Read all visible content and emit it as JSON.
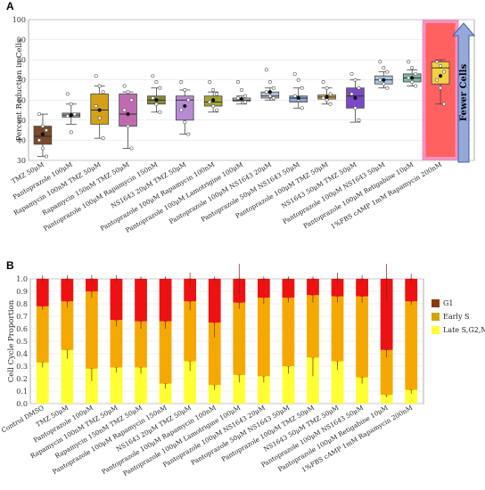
{
  "panel_a_letter": "A",
  "panel_b_letter": "B",
  "chart_data": [
    {
      "type": "box",
      "ylabel": "Percent Reduction in Cells",
      "ylim": [
        30,
        100
      ],
      "yticks": [
        30,
        40,
        50,
        60,
        70,
        80,
        90,
        100
      ],
      "annotation": "Fewer Cells",
      "highlighted_category": "1%FBS cAMP 1mM Rapamycin 200nM",
      "categories": [
        "TMZ 50μM",
        "Pantoprazole 100μM",
        "Rapamycin 100nM TMZ 50μM",
        "Rapamycin 150nM TMZ 50μM",
        "Pantoprazole 100μM Rapamycin 150nM",
        "NS1643 20μM TMZ 50μM",
        "Pantoprazole 100μM Rapamycin 100nM",
        "Pantoprazole 100μM Lamotrigine 100μM",
        "Pantoprazole 100μM NS1643 20μM",
        "Pantoprazole 50μM NS1643 50μM",
        "Pantoprazole 100μM TMZ 50μM",
        "NS1643 50μM TMZ 50μM",
        "Pantoprazole 100μM NS1643 50μM",
        "Pantoprazole 100μM Retigabine 10μM",
        "1%FBS cAMP 1mM Rapamycin 200nM"
      ],
      "series": [
        {
          "color": "#7b4a2a",
          "min": 32,
          "q1": 38,
          "median": 42,
          "q3": 47,
          "max": 53,
          "mean": 43,
          "points": [
            53,
            47,
            45,
            40,
            36,
            32
          ]
        },
        {
          "color": "#9aa0a6",
          "min": 48,
          "q1": 51.5,
          "median": 52.5,
          "q3": 53.5,
          "max": 58,
          "mean": 52.5,
          "points": [
            63,
            58,
            53,
            52,
            44
          ]
        },
        {
          "color": "#d4a017",
          "min": 41,
          "q1": 48,
          "median": 55,
          "q3": 63,
          "max": 67,
          "mean": 55,
          "points": [
            72,
            67,
            64,
            57,
            51,
            41
          ]
        },
        {
          "color": "#c06bb0",
          "min": 36,
          "q1": 47,
          "median": 53,
          "q3": 63,
          "max": 64,
          "mean": 53,
          "points": [
            67,
            64,
            60,
            55,
            47,
            36
          ]
        },
        {
          "color": "#8a8a3a",
          "min": 54,
          "q1": 58,
          "median": 60,
          "q3": 62,
          "max": 66,
          "mean": 60,
          "points": [
            72,
            69,
            66,
            61,
            58,
            54
          ]
        },
        {
          "color": "#b78ad6",
          "min": 43,
          "q1": 50,
          "median": 60,
          "q3": 62,
          "max": 65,
          "mean": 57,
          "points": [
            69,
            65,
            60,
            55,
            49,
            43
          ]
        },
        {
          "color": "#a4a436",
          "min": 54,
          "q1": 57,
          "median": 59,
          "q3": 62,
          "max": 64,
          "mean": 60,
          "points": [
            69,
            65,
            63,
            59,
            57,
            55
          ]
        },
        {
          "color": "#c3c3c3",
          "min": 58,
          "q1": 59.5,
          "median": 60,
          "q3": 61,
          "max": 62,
          "mean": 60.5,
          "points": [
            69,
            65,
            62,
            61,
            60,
            59
          ]
        },
        {
          "color": "#b3c3d6",
          "min": 60,
          "q1": 61,
          "median": 62,
          "q3": 64,
          "max": 66,
          "mean": 64,
          "points": [
            75,
            69,
            66,
            64,
            62,
            61
          ]
        },
        {
          "color": "#8aa6d6",
          "min": 56,
          "q1": 59,
          "median": 61,
          "q3": 62,
          "max": 66,
          "mean": 61,
          "points": [
            73,
            70,
            66,
            62,
            60,
            56
          ]
        },
        {
          "color": "#d6a040",
          "min": 58,
          "q1": 60.5,
          "median": 61.5,
          "q3": 62.5,
          "max": 66,
          "mean": 61.5,
          "points": [
            69,
            66,
            63,
            61,
            60,
            58
          ]
        },
        {
          "color": "#7a4ac6",
          "min": 49,
          "q1": 56,
          "median": 62,
          "q3": 66,
          "max": 70,
          "mean": 61,
          "points": [
            73,
            70,
            66,
            63,
            56,
            50
          ]
        },
        {
          "color": "#a8c6e6",
          "min": 66,
          "q1": 68,
          "median": 70,
          "q3": 72,
          "max": 74,
          "mean": 70,
          "points": [
            79,
            76,
            74,
            70,
            68,
            66
          ]
        },
        {
          "color": "#7fb6a6",
          "min": 67,
          "q1": 69,
          "median": 71,
          "q3": 73,
          "max": 75,
          "mean": 71,
          "points": [
            79,
            76,
            73,
            71,
            69,
            67
          ]
        },
        {
          "color": "#f5d040",
          "min": 58,
          "q1": 68,
          "median": 76,
          "q3": 79,
          "max": 80,
          "mean": 72,
          "points": [
            79,
            77,
            74,
            70,
            66,
            58
          ]
        }
      ]
    },
    {
      "type": "stacked_bar",
      "ylabel": "Cell Cycle Proportion",
      "ylim": [
        0.0,
        1.0
      ],
      "yticks": [
        0.0,
        0.1,
        0.2,
        0.3,
        0.4,
        0.5,
        0.6,
        0.7,
        0.8,
        0.9,
        1.0
      ],
      "legend_position": "right",
      "categories": [
        "Control DMSO",
        "TMZ 50μM",
        "Pantoprazole 100μM",
        "Rapamycin 100nM TMZ 50μM",
        "Rapamycin 150nM TMZ 50μM",
        "Pantoprazole 100μM Rapamycin 150nM",
        "NS1643 20μM TMZ 50μM",
        "Pantoprazole 100μM Rapamycin 100nM",
        "Pantoprazole 100μM Lamotrigine 100μM",
        "Pantoprazole 100μM NS1643 20μM",
        "Pantoprazole 50μM NS1643 50μM",
        "Pantoprazole 100μM TMZ 50μM",
        "NS1643 50μM TMZ 50μM",
        "Pantoprazole 100μM NS1643 50μM",
        "Pantoprazole 100μM Retigabine 10μM",
        "1%FBS cAMP 1mM Rapamycin 200nM"
      ],
      "series": [
        {
          "name": "Late S,G2,M",
          "color": "#ffff33",
          "values": [
            0.33,
            0.43,
            0.28,
            0.29,
            0.29,
            0.16,
            0.34,
            0.15,
            0.23,
            0.22,
            0.3,
            0.37,
            0.34,
            0.21,
            0.07,
            0.11
          ],
          "err": [
            0.04,
            0.07,
            0.1,
            0.04,
            0.05,
            0.04,
            0.08,
            0.04,
            0.06,
            0.05,
            0.06,
            0.15,
            0.07,
            0.05,
            0.02,
            0.03
          ]
        },
        {
          "name": "Early S",
          "color": "#f5a900",
          "values": [
            0.45,
            0.39,
            0.62,
            0.38,
            0.37,
            0.5,
            0.48,
            0.5,
            0.58,
            0.63,
            0.55,
            0.5,
            0.52,
            0.65,
            0.36,
            0.71
          ],
          "err": [
            0.03,
            0.05,
            0.05,
            0.05,
            0.06,
            0.06,
            0.07,
            0.12,
            0.05,
            0.05,
            0.04,
            0.06,
            0.05,
            0.05,
            0.06,
            0.03
          ]
        },
        {
          "name": "G1",
          "color": "#ee1111",
          "values": [
            0.22,
            0.18,
            0.1,
            0.33,
            0.34,
            0.34,
            0.18,
            0.35,
            0.19,
            0.15,
            0.15,
            0.13,
            0.14,
            0.14,
            0.57,
            0.18
          ],
          "err": [
            0.03,
            0.03,
            0.03,
            0.03,
            0.02,
            0.02,
            0.05,
            0.02,
            0.12,
            0.02,
            0.02,
            0.02,
            0.05,
            0.03,
            0.17,
            0.04
          ]
        }
      ]
    }
  ]
}
